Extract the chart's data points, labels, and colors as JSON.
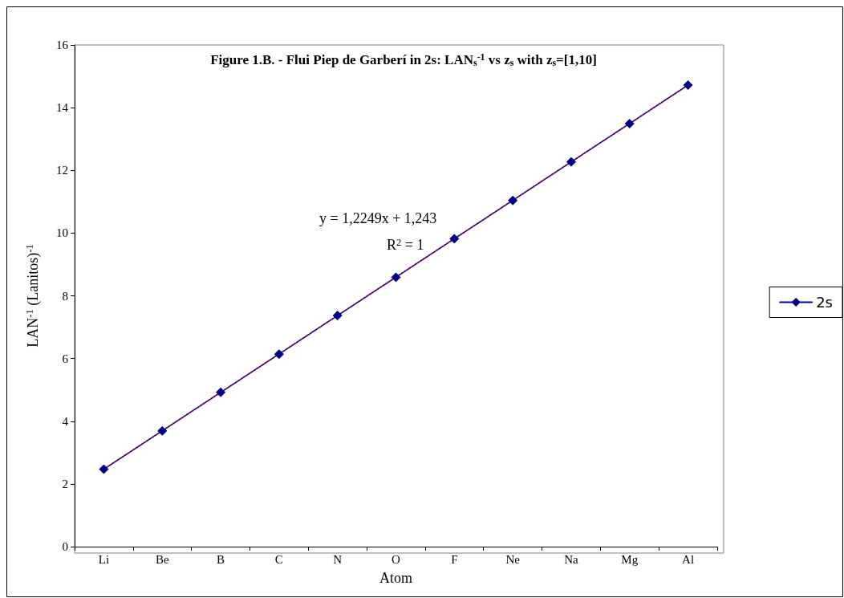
{
  "chart_data": {
    "type": "line",
    "title": "Figure 1.B. - Flui Piep de Garberí in 2s: LAN$_{s}$$^{-1}$ vs z$_{s}$ with z$_{s}$=[1,10]",
    "xlabel": "Atom",
    "ylabel": "LAN$^{-1}$ (Lanitos)$^{-1}$",
    "categories": [
      "Li",
      "Be",
      "B",
      "C",
      "N",
      "O",
      "F",
      "Ne",
      "Na",
      "Mg",
      "Al"
    ],
    "series": [
      {
        "name": "2s",
        "color": "#000080",
        "marker": "diamond",
        "values": [
          2.47,
          3.69,
          4.92,
          6.14,
          7.37,
          8.59,
          9.82,
          11.04,
          12.27,
          13.49,
          14.72
        ]
      },
      {
        "type": "line",
        "color": "#993366",
        "line_style": "dotted",
        "x": [
          "Li",
          "Al"
        ],
        "values": [
          2.47,
          14.72
        ]
      }
    ],
    "annotations": [
      "y = 1,2249x + 1,243",
      "R$^{2}$ = 1"
    ],
    "ylim": [
      0,
      16
    ],
    "yticks": [
      0,
      2,
      4,
      6,
      8,
      10,
      12,
      14,
      16
    ],
    "grid": false,
    "legend": "right"
  }
}
